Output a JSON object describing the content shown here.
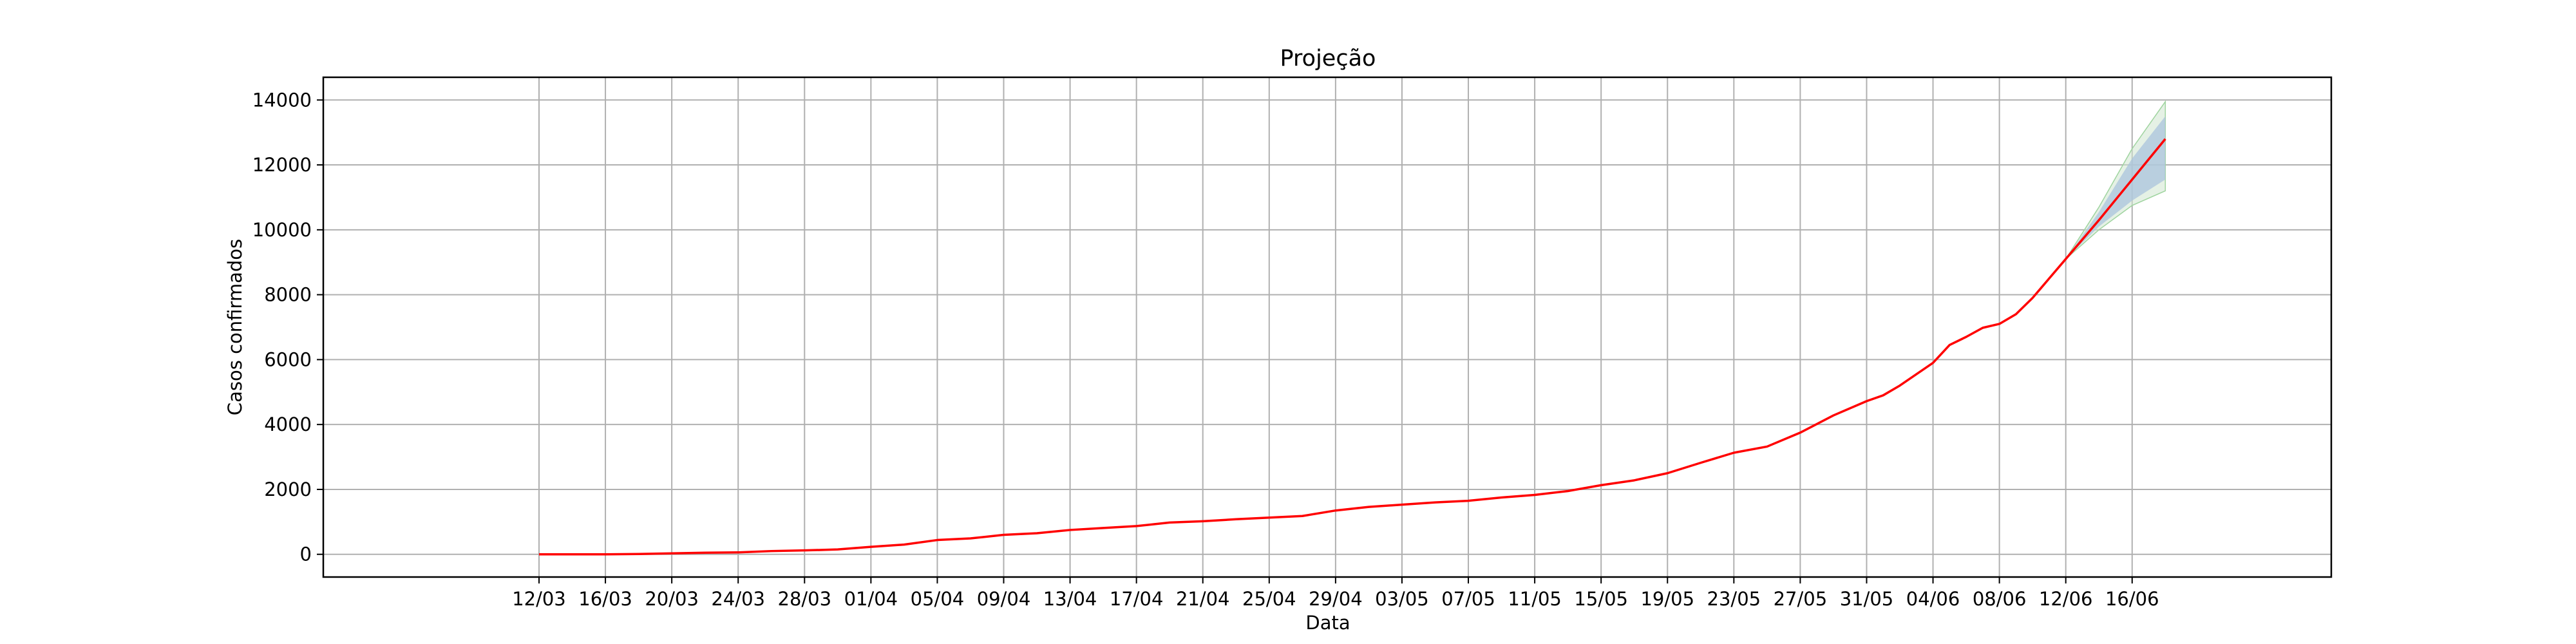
{
  "chart_data": {
    "type": "line",
    "title": "Projeção",
    "xlabel": "Data",
    "ylabel": "Casos confirmados",
    "ylim": [
      -700,
      14700
    ],
    "yticks": [
      0,
      2000,
      4000,
      6000,
      8000,
      10000,
      12000,
      14000
    ],
    "ytick_labels": [
      "0",
      "2000",
      "4000",
      "6000",
      "8000",
      "10000",
      "12000",
      "14000"
    ],
    "xlim": [
      "2020-02-28",
      "2020-06-28"
    ],
    "xticks": [
      "2020-03-12",
      "2020-03-16",
      "2020-03-20",
      "2020-03-24",
      "2020-03-28",
      "2020-04-01",
      "2020-04-05",
      "2020-04-09",
      "2020-04-13",
      "2020-04-17",
      "2020-04-21",
      "2020-04-25",
      "2020-04-29",
      "2020-05-03",
      "2020-05-07",
      "2020-05-11",
      "2020-05-15",
      "2020-05-19",
      "2020-05-23",
      "2020-05-27",
      "2020-05-31",
      "2020-06-04",
      "2020-06-08",
      "2020-06-12",
      "2020-06-16"
    ],
    "xtick_labels": [
      "12/03",
      "16/03",
      "20/03",
      "24/03",
      "28/03",
      "01/04",
      "05/04",
      "09/04",
      "13/04",
      "17/04",
      "21/04",
      "25/04",
      "29/04",
      "03/05",
      "07/05",
      "11/05",
      "15/05",
      "19/05",
      "23/05",
      "27/05",
      "31/05",
      "04/06",
      "08/06",
      "12/06",
      "16/06"
    ],
    "grid": true,
    "colors": {
      "line": "#ff0000",
      "band_inner": "#a9c3dc",
      "band_outer": "#cfe6cf",
      "band_edge": "#9fd49f",
      "grid": "#b0b0b0"
    },
    "series": [
      {
        "x": [
          "2020-03-12",
          "2020-03-14",
          "2020-03-16",
          "2020-03-18",
          "2020-03-20",
          "2020-03-22",
          "2020-03-24",
          "2020-03-26",
          "2020-03-28",
          "2020-03-30",
          "2020-04-01",
          "2020-04-03",
          "2020-04-05",
          "2020-04-07",
          "2020-04-09",
          "2020-04-11",
          "2020-04-13",
          "2020-04-15",
          "2020-04-17",
          "2020-04-19",
          "2020-04-21",
          "2020-04-23",
          "2020-04-25",
          "2020-04-27",
          "2020-04-29",
          "2020-05-01",
          "2020-05-03",
          "2020-05-05",
          "2020-05-07",
          "2020-05-09",
          "2020-05-11",
          "2020-05-13",
          "2020-05-15",
          "2020-05-17",
          "2020-05-19",
          "2020-05-21",
          "2020-05-23",
          "2020-05-25",
          "2020-05-27",
          "2020-05-29",
          "2020-05-31",
          "2020-06-01",
          "2020-06-02",
          "2020-06-03",
          "2020-06-04",
          "2020-06-05",
          "2020-06-06",
          "2020-06-07",
          "2020-06-08",
          "2020-06-09",
          "2020-06-10",
          "2020-06-11",
          "2020-06-12",
          "2020-06-14",
          "2020-06-16",
          "2020-06-18"
        ],
        "values": [
          0,
          0,
          0,
          10,
          30,
          50,
          60,
          100,
          120,
          150,
          230,
          300,
          440,
          490,
          600,
          650,
          750,
          810,
          870,
          980,
          1020,
          1080,
          1130,
          1180,
          1350,
          1460,
          1530,
          1600,
          1650,
          1750,
          1830,
          1950,
          2130,
          2280,
          2500,
          2820,
          3130,
          3320,
          3750,
          4280,
          4720,
          4900,
          5200,
          5550,
          5900,
          6450,
          6700,
          6980,
          7100,
          7400,
          7900,
          8500,
          9100,
          10300,
          11550,
          12800
        ]
      }
    ],
    "projection_band": {
      "x": [
        "2020-06-12",
        "2020-06-14",
        "2020-06-16",
        "2020-06-18"
      ],
      "inner_low": [
        9100,
        10100,
        10900,
        11550
      ],
      "inner_high": [
        9100,
        10550,
        12200,
        13500
      ],
      "outer_low": [
        9100,
        10000,
        10750,
        11200
      ],
      "outer_high": [
        9100,
        10700,
        12500,
        13950
      ]
    }
  }
}
